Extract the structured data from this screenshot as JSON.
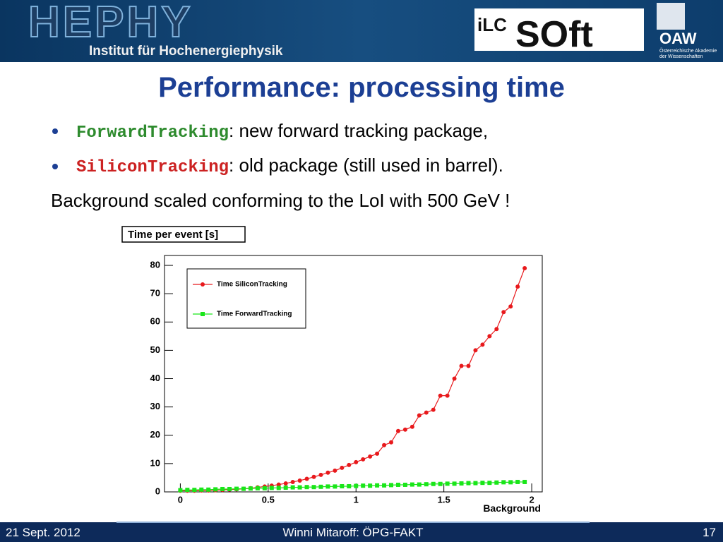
{
  "header": {
    "logo": "HEPHY",
    "institute": "Institut für Hochenergiephysik",
    "ilc": "iLC",
    "soft": "SOft",
    "oaw": "OAW",
    "oaw_line1": "Österreichische Akademie",
    "oaw_line2": "der Wissenschaften"
  },
  "title": "Performance: processing time",
  "bullets": [
    {
      "code": "ForwardTracking",
      "text": ": new forward tracking package,"
    },
    {
      "code": "SiliconTracking",
      "text": ": old package (still used in barrel)."
    }
  ],
  "note": "Background scaled conforming to the LoI with 500 GeV !",
  "chart_data": {
    "type": "line",
    "title": "Time per event [s]",
    "x_label": "Background",
    "x": [
      0,
      0.04,
      0.08,
      0.12,
      0.16,
      0.2,
      0.24,
      0.28,
      0.32,
      0.36,
      0.4,
      0.44,
      0.48,
      0.52,
      0.56,
      0.6,
      0.64,
      0.68,
      0.72,
      0.76,
      0.8,
      0.84,
      0.88,
      0.92,
      0.96,
      1,
      1.04,
      1.08,
      1.12,
      1.16,
      1.2,
      1.24,
      1.28,
      1.32,
      1.36,
      1.4,
      1.44,
      1.48,
      1.52,
      1.56,
      1.6,
      1.64,
      1.68,
      1.72,
      1.76,
      1.8,
      1.84,
      1.88,
      1.92,
      1.96
    ],
    "series": [
      {
        "name": "Time SiliconTracking",
        "color": "#e8191c",
        "marker": "circle",
        "values": [
          0.4,
          0.4,
          0.4,
          0.5,
          0.5,
          0.6,
          0.7,
          0.8,
          0.9,
          1.1,
          1.3,
          1.6,
          1.9,
          2.2,
          2.6,
          3,
          3.5,
          4,
          4.6,
          5.3,
          6,
          6.8,
          7.5,
          8.5,
          9.5,
          10.5,
          11.5,
          12.5,
          13.5,
          16.5,
          17.5,
          21.5,
          22,
          23,
          27,
          28,
          29,
          34,
          34,
          40,
          44.5,
          44.5,
          50,
          52,
          55,
          57.5,
          63.5,
          65.5,
          72.5,
          79
        ]
      },
      {
        "name": "Time ForwardTracking",
        "color": "#19e619",
        "marker": "square",
        "values": [
          0.6,
          0.7,
          0.7,
          0.8,
          0.8,
          0.9,
          1.0,
          1.0,
          1.1,
          1.1,
          1.2,
          1.3,
          1.3,
          1.4,
          1.4,
          1.5,
          1.6,
          1.6,
          1.7,
          1.7,
          1.8,
          1.9,
          1.9,
          2.0,
          2.0,
          2.1,
          2.2,
          2.2,
          2.3,
          2.3,
          2.4,
          2.5,
          2.5,
          2.6,
          2.6,
          2.7,
          2.8,
          2.8,
          2.9,
          2.9,
          3.0,
          3.1,
          3.1,
          3.2,
          3.2,
          3.3,
          3.4,
          3.4,
          3.5,
          3.5
        ]
      }
    ],
    "xlim": [
      -0.09,
      2.06
    ],
    "ylim": [
      0,
      83.5
    ],
    "xticks": [
      0,
      0.5,
      1,
      1.5,
      2
    ],
    "yticks": [
      0,
      10,
      20,
      30,
      40,
      50,
      60,
      70,
      80
    ],
    "legend": "top-left",
    "grid": false
  },
  "footer": {
    "date": "21 Sept. 2012",
    "author": "Winni Mitaroff: ÖPG-FAKT",
    "page": "17"
  }
}
